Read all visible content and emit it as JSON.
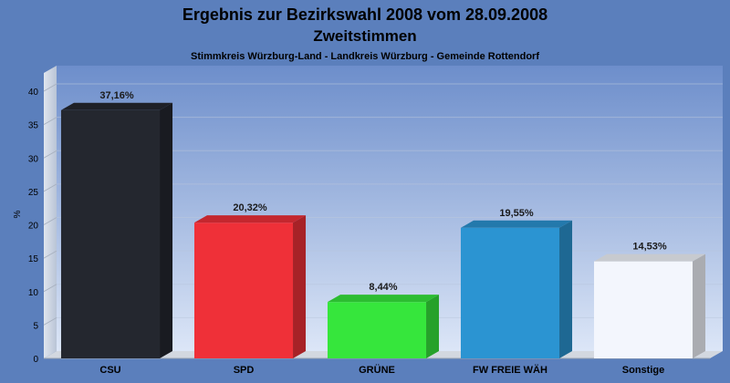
{
  "chart_data": {
    "type": "bar",
    "title": "Ergebnis zur Bezirkswahl 2008 vom 28.09.2008",
    "subtitle": "Zweitstimmen",
    "caption": "Stimmkreis Würzburg-Land - Landkreis Würzburg - Gemeinde Rottendorf",
    "xlabel": "",
    "ylabel": "%",
    "ylim": [
      0,
      40
    ],
    "yticks": [
      "0",
      "5",
      "10",
      "15",
      "20",
      "25",
      "30",
      "35",
      "40"
    ],
    "grid": true,
    "categories": [
      "CSU",
      "SPD",
      "GRÜNE",
      "FW FREIE WÄH",
      "Sonstige"
    ],
    "values": [
      37.16,
      20.32,
      8.44,
      19.55,
      14.53
    ],
    "value_labels": [
      "37,16%",
      "20,32%",
      "8,44%",
      "19,55%",
      "14,53%"
    ],
    "colors": [
      "#24272f",
      "#ef3038",
      "#36e63c",
      "#2b94d2",
      "#f3f6fd"
    ],
    "background_color": "#5b7fbc"
  }
}
